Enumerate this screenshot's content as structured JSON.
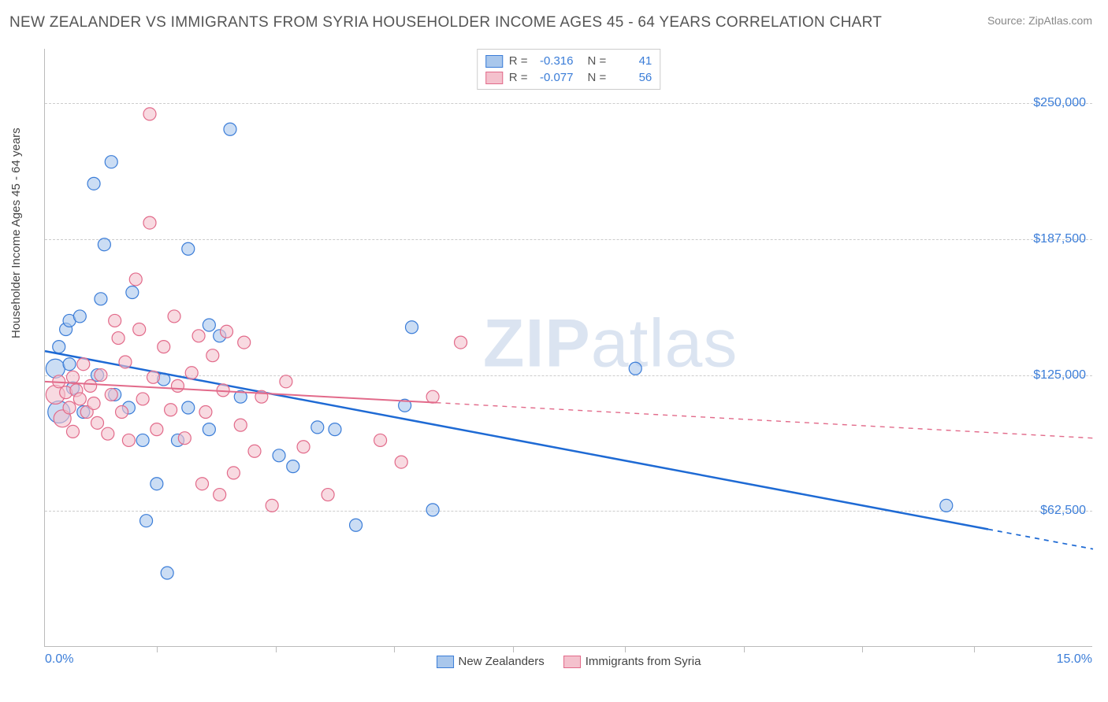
{
  "title": "NEW ZEALANDER VS IMMIGRANTS FROM SYRIA HOUSEHOLDER INCOME AGES 45 - 64 YEARS CORRELATION CHART",
  "source": "Source: ZipAtlas.com",
  "watermark_a": "ZIP",
  "watermark_b": "atlas",
  "chart": {
    "type": "scatter-with-regression",
    "background_color": "#ffffff",
    "grid_color": "#cccccc",
    "axis_color": "#bbbbbb",
    "y_axis_label": "Householder Income Ages 45 - 64 years",
    "xlim": [
      0.0,
      15.0
    ],
    "ylim": [
      0,
      275000
    ],
    "x_start_label": "0.0%",
    "x_end_label": "15.0%",
    "y_ticks": [
      {
        "v": 62500,
        "label": "$62,500"
      },
      {
        "v": 125000,
        "label": "$125,000"
      },
      {
        "v": 187500,
        "label": "$187,500"
      },
      {
        "v": 250000,
        "label": "$250,000"
      }
    ],
    "x_tick_positions": [
      1.6,
      3.3,
      5.0,
      6.7,
      8.3,
      10.0,
      11.7,
      13.3
    ],
    "legend_bottom": [
      {
        "label": "New Zealanders",
        "swatch_fill": "#a9c7ec",
        "swatch_border": "#3b7dd8"
      },
      {
        "label": "Immigrants from Syria",
        "swatch_fill": "#f4c1cd",
        "swatch_border": "#e26a8a"
      }
    ],
    "legend_top": [
      {
        "swatch_fill": "#a9c7ec",
        "swatch_border": "#3b7dd8",
        "r_label": "R =",
        "r_val": "-0.316",
        "n_label": "N =",
        "n_val": "41"
      },
      {
        "swatch_fill": "#f4c1cd",
        "swatch_border": "#e26a8a",
        "r_label": "R =",
        "r_val": "-0.077",
        "n_label": "N =",
        "n_val": "56"
      }
    ],
    "series": [
      {
        "name": "New Zealanders",
        "marker_fill": "#a9c7ec",
        "marker_stroke": "#3b7dd8",
        "marker_opacity": 0.6,
        "marker_r": 8,
        "line_color": "#1e6ad4",
        "line_width": 2.5,
        "line_dash": "none",
        "regression": {
          "x1": 0.0,
          "y1": 136000,
          "x2": 15.0,
          "y2": 45000,
          "solid_until_x": 13.5
        },
        "points": [
          {
            "x": 0.15,
            "y": 128000,
            "r": 12
          },
          {
            "x": 0.2,
            "y": 138000
          },
          {
            "x": 0.2,
            "y": 108000,
            "r": 14
          },
          {
            "x": 0.3,
            "y": 146000
          },
          {
            "x": 0.35,
            "y": 130000
          },
          {
            "x": 0.35,
            "y": 150000
          },
          {
            "x": 0.4,
            "y": 119000
          },
          {
            "x": 0.5,
            "y": 152000
          },
          {
            "x": 0.55,
            "y": 108000
          },
          {
            "x": 0.7,
            "y": 213000
          },
          {
            "x": 0.75,
            "y": 125000
          },
          {
            "x": 0.8,
            "y": 160000
          },
          {
            "x": 0.85,
            "y": 185000
          },
          {
            "x": 0.95,
            "y": 223000
          },
          {
            "x": 1.0,
            "y": 116000
          },
          {
            "x": 1.2,
            "y": 110000
          },
          {
            "x": 1.25,
            "y": 163000
          },
          {
            "x": 1.4,
            "y": 95000
          },
          {
            "x": 1.45,
            "y": 58000
          },
          {
            "x": 1.6,
            "y": 75000
          },
          {
            "x": 1.7,
            "y": 123000
          },
          {
            "x": 1.75,
            "y": 34000
          },
          {
            "x": 1.9,
            "y": 95000
          },
          {
            "x": 2.05,
            "y": 183000
          },
          {
            "x": 2.05,
            "y": 110000
          },
          {
            "x": 2.35,
            "y": 148000
          },
          {
            "x": 2.35,
            "y": 100000
          },
          {
            "x": 2.5,
            "y": 143000
          },
          {
            "x": 2.65,
            "y": 238000
          },
          {
            "x": 2.8,
            "y": 115000
          },
          {
            "x": 3.35,
            "y": 88000
          },
          {
            "x": 3.55,
            "y": 83000
          },
          {
            "x": 3.9,
            "y": 101000
          },
          {
            "x": 4.15,
            "y": 100000
          },
          {
            "x": 4.45,
            "y": 56000
          },
          {
            "x": 5.15,
            "y": 111000
          },
          {
            "x": 5.25,
            "y": 147000
          },
          {
            "x": 5.55,
            "y": 63000
          },
          {
            "x": 8.45,
            "y": 128000
          },
          {
            "x": 12.9,
            "y": 65000
          }
        ]
      },
      {
        "name": "Immigrants from Syria",
        "marker_fill": "#f4c1cd",
        "marker_stroke": "#e26a8a",
        "marker_opacity": 0.6,
        "marker_r": 8,
        "line_color": "#e26a8a",
        "line_width": 2,
        "line_dash": "5,5",
        "regression": {
          "x1": 0.0,
          "y1": 122000,
          "x2": 15.0,
          "y2": 96000,
          "solid_until_x": 5.6
        },
        "points": [
          {
            "x": 0.15,
            "y": 116000,
            "r": 12
          },
          {
            "x": 0.2,
            "y": 122000
          },
          {
            "x": 0.25,
            "y": 105000,
            "r": 11
          },
          {
            "x": 0.3,
            "y": 117000
          },
          {
            "x": 0.35,
            "y": 110000
          },
          {
            "x": 0.4,
            "y": 124000
          },
          {
            "x": 0.4,
            "y": 99000
          },
          {
            "x": 0.45,
            "y": 118000
          },
          {
            "x": 0.5,
            "y": 114000
          },
          {
            "x": 0.55,
            "y": 130000
          },
          {
            "x": 0.6,
            "y": 108000
          },
          {
            "x": 0.65,
            "y": 120000
          },
          {
            "x": 0.7,
            "y": 112000
          },
          {
            "x": 0.75,
            "y": 103000
          },
          {
            "x": 0.8,
            "y": 125000
          },
          {
            "x": 0.9,
            "y": 98000
          },
          {
            "x": 0.95,
            "y": 116000
          },
          {
            "x": 1.0,
            "y": 150000
          },
          {
            "x": 1.05,
            "y": 142000
          },
          {
            "x": 1.1,
            "y": 108000
          },
          {
            "x": 1.15,
            "y": 131000
          },
          {
            "x": 1.2,
            "y": 95000
          },
          {
            "x": 1.3,
            "y": 169000
          },
          {
            "x": 1.35,
            "y": 146000
          },
          {
            "x": 1.4,
            "y": 114000
          },
          {
            "x": 1.5,
            "y": 195000
          },
          {
            "x": 1.5,
            "y": 245000
          },
          {
            "x": 1.55,
            "y": 124000
          },
          {
            "x": 1.6,
            "y": 100000
          },
          {
            "x": 1.7,
            "y": 138000
          },
          {
            "x": 1.8,
            "y": 109000
          },
          {
            "x": 1.85,
            "y": 152000
          },
          {
            "x": 1.9,
            "y": 120000
          },
          {
            "x": 2.0,
            "y": 96000
          },
          {
            "x": 2.1,
            "y": 126000
          },
          {
            "x": 2.2,
            "y": 143000
          },
          {
            "x": 2.25,
            "y": 75000
          },
          {
            "x": 2.3,
            "y": 108000
          },
          {
            "x": 2.4,
            "y": 134000
          },
          {
            "x": 2.5,
            "y": 70000
          },
          {
            "x": 2.55,
            "y": 118000
          },
          {
            "x": 2.6,
            "y": 145000
          },
          {
            "x": 2.7,
            "y": 80000
          },
          {
            "x": 2.8,
            "y": 102000
          },
          {
            "x": 2.85,
            "y": 140000
          },
          {
            "x": 3.0,
            "y": 90000
          },
          {
            "x": 3.1,
            "y": 115000
          },
          {
            "x": 3.25,
            "y": 65000
          },
          {
            "x": 3.45,
            "y": 122000
          },
          {
            "x": 3.7,
            "y": 92000
          },
          {
            "x": 4.05,
            "y": 70000
          },
          {
            "x": 4.8,
            "y": 95000
          },
          {
            "x": 5.1,
            "y": 85000
          },
          {
            "x": 5.55,
            "y": 115000
          },
          {
            "x": 5.95,
            "y": 140000
          }
        ]
      }
    ]
  }
}
